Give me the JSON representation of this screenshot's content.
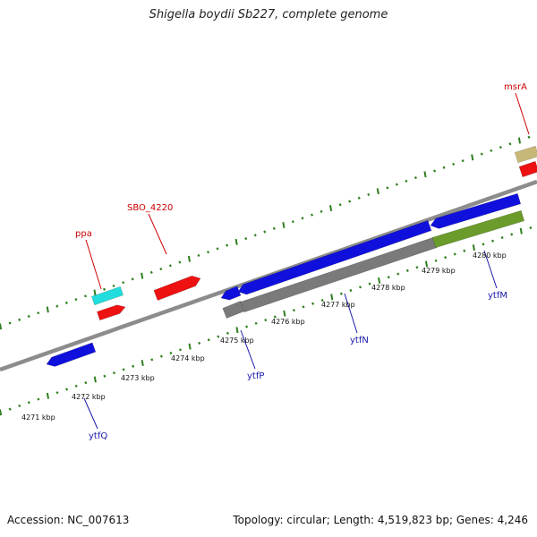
{
  "title": "Shigella boydii Sb227, complete genome",
  "footer": {
    "accession": "Accession: NC_007613",
    "summary": "Topology: circular; Length: 4,519,823 bp; Genes: 4,246"
  },
  "colors": {
    "backbone": "#8c8c8c",
    "tick": "#2f7f1f",
    "gene_blue": "#1010dd",
    "gene_red": "#ee1111",
    "gene_cyan": "#22dddd",
    "gene_gray": "#7a7a7a",
    "gene_olive": "#6b9b2a",
    "gene_khaki": "#c8b878",
    "label_red": "#cc0000",
    "label_blue": "#1a1aaa"
  },
  "scale_labels": [
    "4271 kbp",
    "4272 kbp",
    "4273 kbp",
    "4274 kbp",
    "4275 kbp",
    "4276 kbp",
    "4277 kbp",
    "4278 kbp",
    "4279 kbp",
    "4280 kbp"
  ],
  "gene_labels_top": [
    "ppa",
    "SBO_4220",
    "msrA"
  ],
  "gene_labels_bottom": [
    "ytfQ",
    "ytfP",
    "ytfN",
    "ytfM"
  ]
}
